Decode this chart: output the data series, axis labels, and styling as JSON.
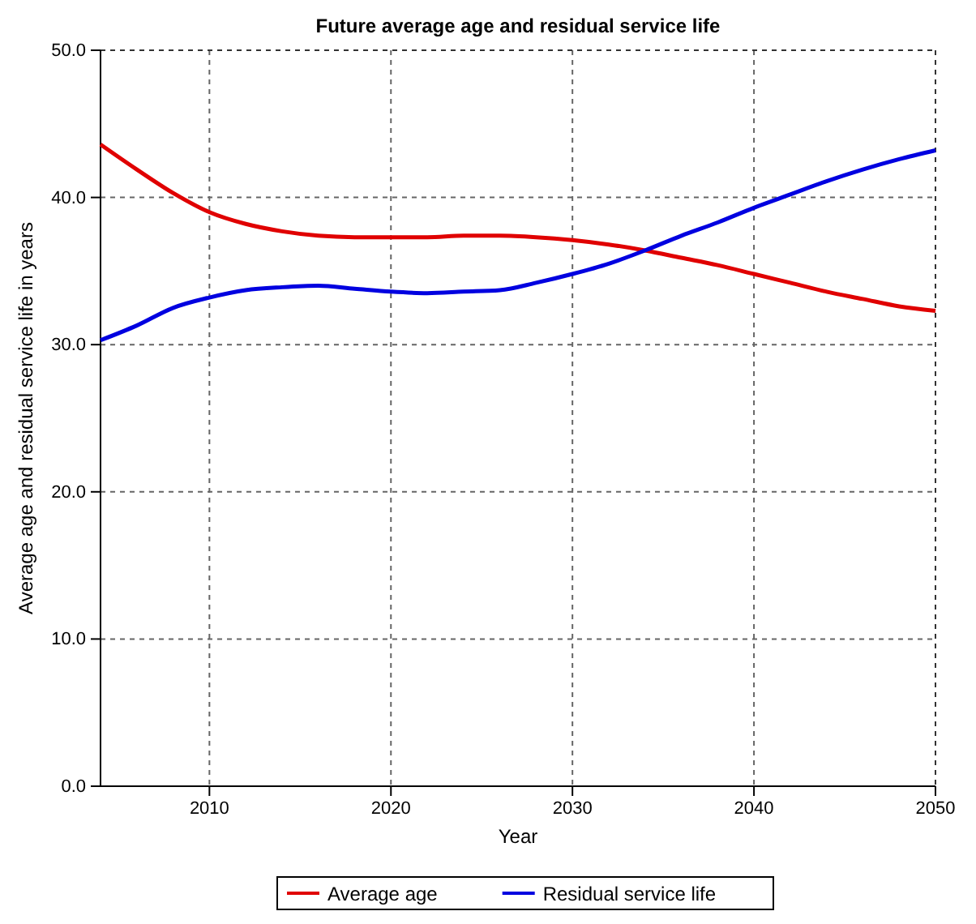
{
  "chart_data": {
    "type": "line",
    "title": "Future average age and residual service life",
    "xlabel": "Year",
    "ylabel": "Average age and residual service life in years",
    "x": [
      2004,
      2006,
      2008,
      2010,
      2012,
      2014,
      2016,
      2018,
      2020,
      2022,
      2024,
      2026,
      2028,
      2030,
      2032,
      2034,
      2036,
      2038,
      2040,
      2042,
      2044,
      2046,
      2048,
      2050
    ],
    "series": [
      {
        "name": "Average age",
        "color": "#e00000",
        "values": [
          43.6,
          41.9,
          40.3,
          39.0,
          38.2,
          37.7,
          37.4,
          37.3,
          37.3,
          37.3,
          37.4,
          37.4,
          37.3,
          37.1,
          36.8,
          36.4,
          35.9,
          35.4,
          34.8,
          34.2,
          33.6,
          33.1,
          32.6,
          32.3
        ]
      },
      {
        "name": "Residual service life",
        "color": "#0000e0",
        "values": [
          30.3,
          31.3,
          32.5,
          33.2,
          33.7,
          33.9,
          34.0,
          33.8,
          33.6,
          33.5,
          33.6,
          33.7,
          34.2,
          34.8,
          35.5,
          36.4,
          37.4,
          38.3,
          39.3,
          40.2,
          41.1,
          41.9,
          42.6,
          43.2
        ]
      }
    ],
    "xlim": [
      2004,
      2050
    ],
    "xticks": [
      2010,
      2020,
      2030,
      2040,
      2050
    ],
    "ylim": [
      0,
      50
    ],
    "yticks": [
      {
        "value": 0,
        "label": "0.0"
      },
      {
        "value": 10,
        "label": "10.0"
      },
      {
        "value": 20,
        "label": "20.0"
      },
      {
        "value": 30,
        "label": "30.0"
      },
      {
        "value": 40,
        "label": "40.0"
      },
      {
        "value": 50,
        "label": "50.0"
      }
    ],
    "grid": true,
    "legend": "bottom",
    "marker": "none",
    "line_style": "solid"
  }
}
